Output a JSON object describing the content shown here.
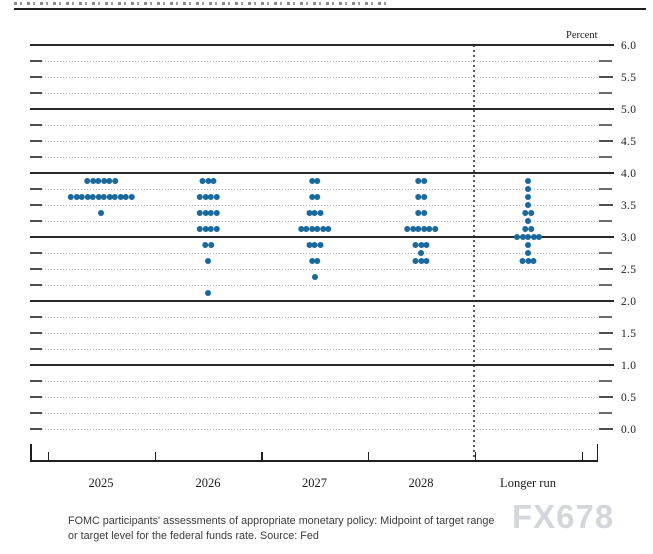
{
  "unit_label": "Percent",
  "chart_data": {
    "type": "scatter",
    "description": "FOMC dot plot of federal funds rate projections",
    "ylabel": "Percent",
    "ylim": [
      0.0,
      6.0
    ],
    "grid_step": 0.25,
    "label_step": 0.5,
    "solid_lines_at": [
      6.0,
      5.0,
      4.0,
      3.0,
      2.0,
      1.0
    ],
    "ytick_labels": [
      "6.0",
      "5.5",
      "5.0",
      "4.5",
      "4.0",
      "3.5",
      "3.0",
      "2.5",
      "2.0",
      "1.5",
      "1.0",
      "0.5",
      "0.0"
    ],
    "categories": [
      "2025",
      "2026",
      "2027",
      "2028",
      "Longer run"
    ],
    "divider_before_category": "Longer run",
    "dot_color": "#19699f",
    "series": [
      {
        "name": "2025",
        "dots": [
          {
            "rate": 3.875,
            "count": 6
          },
          {
            "rate": 3.625,
            "count": 12
          },
          {
            "rate": 3.375,
            "count": 1
          }
        ]
      },
      {
        "name": "2026",
        "dots": [
          {
            "rate": 3.875,
            "count": 3
          },
          {
            "rate": 3.625,
            "count": 4
          },
          {
            "rate": 3.375,
            "count": 4
          },
          {
            "rate": 3.125,
            "count": 4
          },
          {
            "rate": 2.875,
            "count": 2
          },
          {
            "rate": 2.625,
            "count": 1
          },
          {
            "rate": 2.125,
            "count": 1
          }
        ]
      },
      {
        "name": "2027",
        "dots": [
          {
            "rate": 3.875,
            "count": 2
          },
          {
            "rate": 3.625,
            "count": 2
          },
          {
            "rate": 3.375,
            "count": 3
          },
          {
            "rate": 3.125,
            "count": 6
          },
          {
            "rate": 2.875,
            "count": 3
          },
          {
            "rate": 2.625,
            "count": 2
          },
          {
            "rate": 2.375,
            "count": 1
          }
        ]
      },
      {
        "name": "2028",
        "dots": [
          {
            "rate": 3.875,
            "count": 2
          },
          {
            "rate": 3.625,
            "count": 2
          },
          {
            "rate": 3.375,
            "count": 2
          },
          {
            "rate": 3.125,
            "count": 6
          },
          {
            "rate": 2.875,
            "count": 3
          },
          {
            "rate": 2.75,
            "count": 1
          },
          {
            "rate": 2.625,
            "count": 3
          }
        ]
      },
      {
        "name": "Longer run",
        "dots": [
          {
            "rate": 3.875,
            "count": 1
          },
          {
            "rate": 3.75,
            "count": 1
          },
          {
            "rate": 3.625,
            "count": 1
          },
          {
            "rate": 3.5,
            "count": 1
          },
          {
            "rate": 3.375,
            "count": 2
          },
          {
            "rate": 3.25,
            "count": 1
          },
          {
            "rate": 3.125,
            "count": 2
          },
          {
            "rate": 3.0,
            "count": 5
          },
          {
            "rate": 2.875,
            "count": 1
          },
          {
            "rate": 2.75,
            "count": 1
          },
          {
            "rate": 2.625,
            "count": 3
          }
        ]
      }
    ]
  },
  "footer": {
    "caption_line1": "FOMC participants' assessments of appropriate monetary policy: Midpoint of target range",
    "caption_line2": "or target level for the federal funds rate. Source: Fed",
    "watermark": "FX678"
  }
}
